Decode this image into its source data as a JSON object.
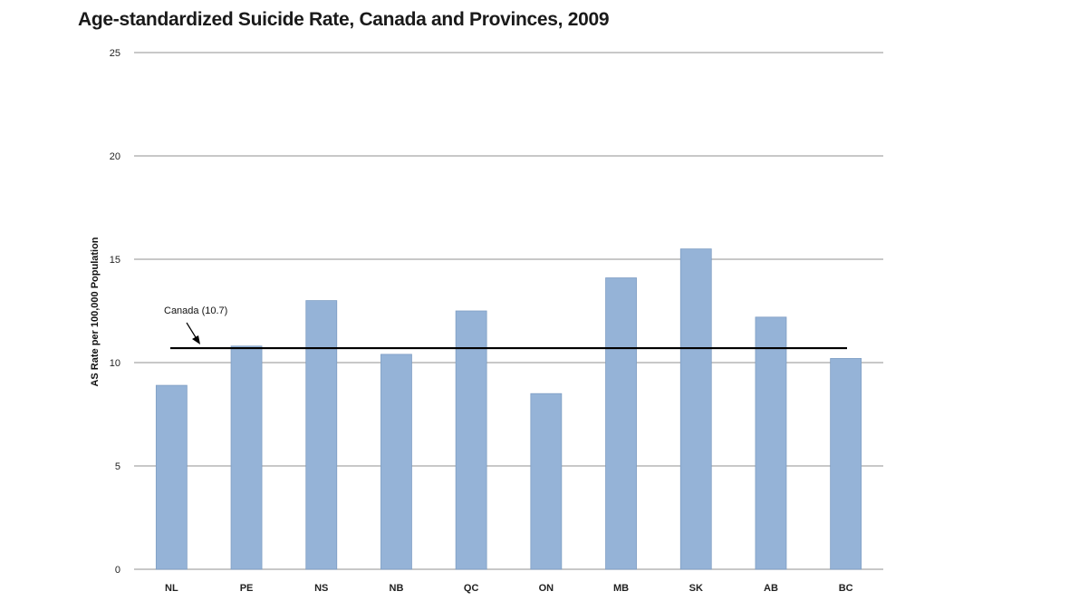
{
  "chart_data": {
    "type": "bar",
    "title": "Age-standardized Suicide Rate, Canada and Provinces, 2009",
    "xlabel": "",
    "ylabel": "AS Rate per 100,000 Population",
    "ylim": [
      0,
      25
    ],
    "yticks": [
      0,
      5,
      10,
      15,
      20,
      25
    ],
    "grid": true,
    "categories": [
      "NL",
      "PE",
      "NS",
      "NB",
      "QC",
      "ON",
      "MB",
      "SK",
      "AB",
      "BC"
    ],
    "values": [
      8.9,
      10.8,
      13.0,
      10.4,
      12.5,
      8.5,
      14.1,
      15.5,
      12.2,
      10.2
    ],
    "bar_color": "#95b3d7",
    "reference_line": {
      "label": "Canada (10.7)",
      "value": 10.7,
      "color": "#000000"
    }
  }
}
